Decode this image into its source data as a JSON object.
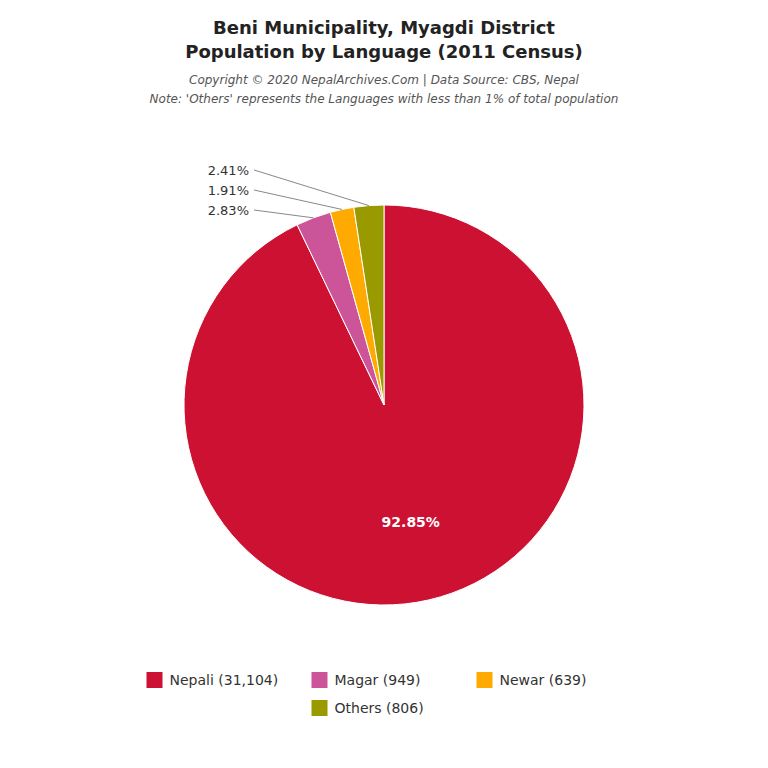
{
  "chart_data": {
    "type": "pie",
    "title": "Beni Municipality, Myagdi District",
    "subtitle": "Population by Language (2011 Census)",
    "annotations": [
      "Copyright © 2020 NepalArchives.Com | Data Source: CBS, Nepal",
      "Note: 'Others' represents the Languages with less than 1% of total population"
    ],
    "categories": [
      "Nepali (31,104)",
      "Magar (949)",
      "Newar (639)",
      "Others (806)"
    ],
    "values": [
      92.85,
      2.83,
      1.91,
      2.41
    ],
    "value_labels": [
      "92.85%",
      "2.83%",
      "1.91%",
      "2.41%"
    ],
    "colors": [
      "#cc1133",
      "#cc5599",
      "#ffaa00",
      "#999900"
    ],
    "data_labels": true,
    "legend": "bottom"
  }
}
